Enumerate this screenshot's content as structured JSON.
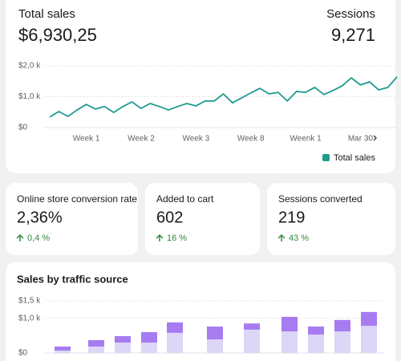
{
  "header": {
    "sales_label": "Total sales",
    "sales_value": "$6,930,25",
    "sessions_label": "Sessions",
    "sessions_value": "9,271"
  },
  "metrics": [
    {
      "label": "Online store conversion rate",
      "value": "2,36%",
      "change": "0,4 %"
    },
    {
      "label": "Added to cart",
      "value": "602",
      "change": "16 %"
    },
    {
      "label": "Sessions converted",
      "value": "219",
      "change": "43 %"
    }
  ],
  "chart_data": [
    {
      "type": "line",
      "categories": [
        null,
        null,
        null,
        null,
        "Week 1",
        null,
        null,
        null,
        null,
        null,
        "Week 2",
        null,
        null,
        null,
        null,
        null,
        "Week 3",
        null,
        null,
        null,
        null,
        null,
        "Week 8",
        null,
        null,
        null,
        null,
        null,
        "Weenk 1",
        null,
        null,
        null,
        null,
        null,
        "Mar 30",
        null,
        null,
        null,
        null
      ],
      "series": [
        {
          "name": "Total sales",
          "color": "#1f9b8f",
          "values": [
            340,
            520,
            360,
            570,
            750,
            600,
            680,
            490,
            680,
            830,
            620,
            780,
            680,
            570,
            680,
            780,
            700,
            860,
            860,
            1090,
            800,
            960,
            1120,
            1270,
            1090,
            1140,
            860,
            1170,
            1140,
            1300,
            1070,
            1200,
            1350,
            1610,
            1380,
            1480,
            1220,
            1300,
            1640
          ]
        }
      ],
      "ylim": [
        0,
        2000
      ],
      "yticks": [
        {
          "value": 0,
          "label": "$0"
        },
        {
          "value": 1000,
          "label": "$1,0 k"
        },
        {
          "value": 2000,
          "label": "$2,0 k"
        }
      ],
      "grid": true,
      "legend": "bottom-right"
    },
    {
      "type": "bar",
      "stacked": true,
      "title": "Sales by traffic source",
      "categories": [
        null,
        null,
        null,
        null,
        null,
        null,
        null,
        null,
        null,
        null,
        null
      ],
      "series": [
        {
          "color": "#dcd6f7",
          "values": [
            70,
            185,
            300,
            300,
            580,
            390,
            670,
            620,
            530,
            620,
            780
          ]
        },
        {
          "color": "#a77cf0",
          "values": [
            115,
            185,
            185,
            300,
            300,
            370,
            180,
            420,
            230,
            330,
            400
          ]
        }
      ],
      "ylim": [
        0,
        1500
      ],
      "yticks": [
        {
          "value": 0,
          "label": "$0"
        },
        {
          "value": 1000,
          "label": "$1,0 k"
        },
        {
          "value": 1500,
          "label": "$1,5 k"
        }
      ],
      "grid": true
    }
  ]
}
